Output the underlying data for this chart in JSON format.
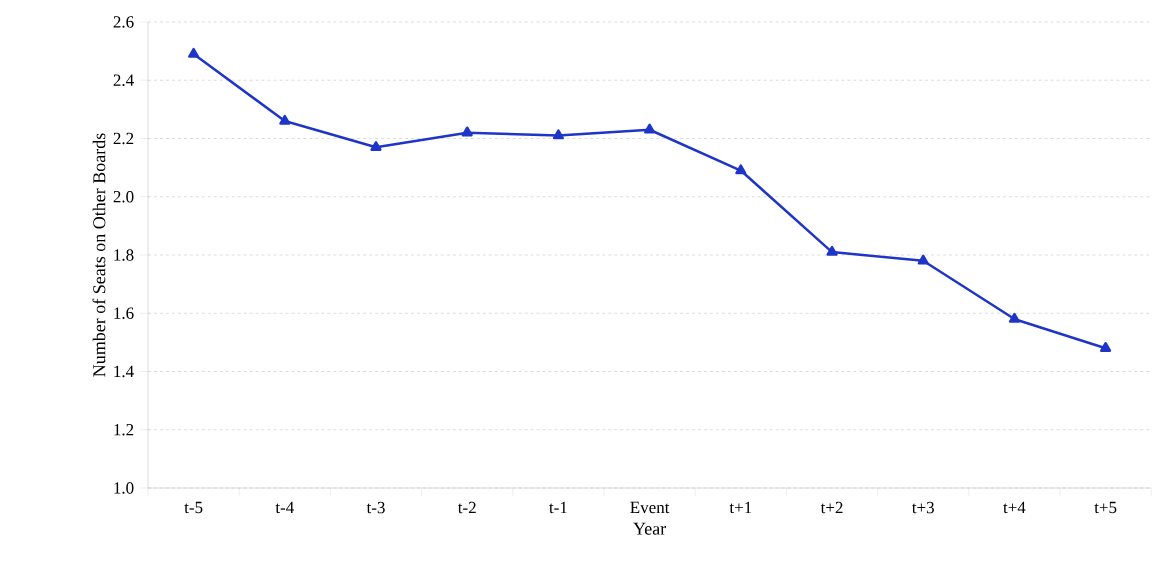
{
  "chart_data": {
    "type": "line",
    "xlabel": "Year",
    "ylabel": "Number of Seats on Other Boards",
    "categories": [
      "t-5",
      "t-4",
      "t-3",
      "t-2",
      "t-1",
      "Event",
      "t+1",
      "t+2",
      "t+3",
      "t+4",
      "t+5"
    ],
    "values": [
      2.49,
      2.26,
      2.17,
      2.22,
      2.21,
      2.23,
      2.09,
      1.81,
      1.78,
      1.58,
      1.48
    ],
    "color": "#1f35c8",
    "marker": "triangle",
    "line_style": "solid",
    "grid": "y",
    "ylim": [
      1.0,
      2.6
    ],
    "yticks": [
      {
        "value": 1.0,
        "label": "1.0"
      },
      {
        "value": 1.2,
        "label": "1.2"
      },
      {
        "value": 1.4,
        "label": "1.4"
      },
      {
        "value": 1.6,
        "label": "1.6"
      },
      {
        "value": 1.8,
        "label": "1.8"
      },
      {
        "value": 2.0,
        "label": "2.0"
      },
      {
        "value": 2.2,
        "label": "2.2"
      },
      {
        "value": 2.4,
        "label": "2.4"
      },
      {
        "value": 2.6,
        "label": "2.6"
      }
    ]
  }
}
